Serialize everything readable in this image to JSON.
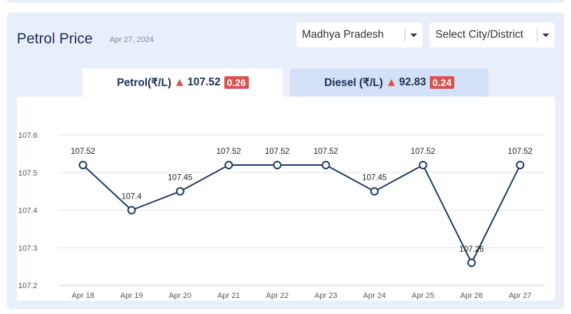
{
  "header": {
    "title": "Petrol Price",
    "date": "Apr 27, 2024"
  },
  "filters": {
    "state": "Madhya Pradesh",
    "city": "Select City/District"
  },
  "tabs": {
    "petrol": {
      "label": "Petrol(₹/L)",
      "price": "107.52",
      "change": "0.26",
      "trend": "up"
    },
    "diesel": {
      "label": "Diesel (₹/L)",
      "price": "92.83",
      "change": "0.24",
      "trend": "up"
    }
  },
  "colors": {
    "line": "#1b3563",
    "trend_up": "#d9534f",
    "grid": "#e3e3e3"
  },
  "chart_data": {
    "type": "line",
    "categories": [
      "Apr 18",
      "Apr 19",
      "Apr 20",
      "Apr 21",
      "Apr 22",
      "Apr 23",
      "Apr 24",
      "Apr 25",
      "Apr 26",
      "Apr 27"
    ],
    "values": [
      107.52,
      107.4,
      107.45,
      107.52,
      107.52,
      107.52,
      107.45,
      107.52,
      107.26,
      107.52
    ],
    "data_labels": [
      "107.52",
      "107.4",
      "107.45",
      "107.52",
      "107.52",
      "107.52",
      "107.45",
      "107.52",
      "107.26",
      "107.52"
    ],
    "yticks": [
      "107.6",
      "107.5",
      "107.4",
      "107.3",
      "107.2"
    ],
    "ylim": [
      107.2,
      107.6
    ],
    "grid": true,
    "legend": false
  }
}
